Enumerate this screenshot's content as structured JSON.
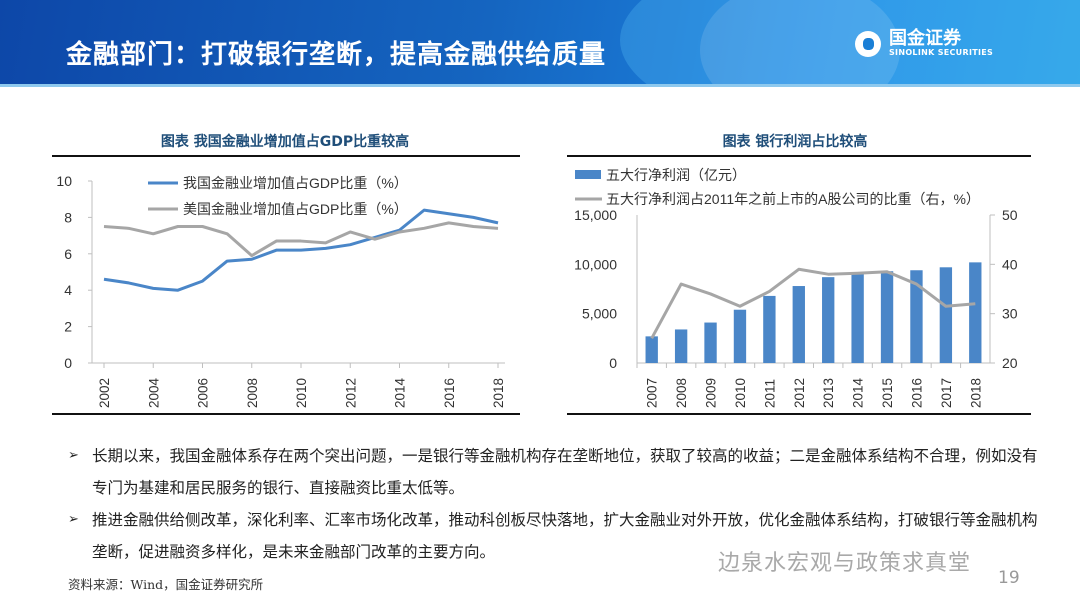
{
  "header": {
    "title": "金融部门：打破银行垄断，提高金融供给质量",
    "logo_cn": "国金证券",
    "logo_en": "SINOLINK SECURITIES"
  },
  "chart_data": [
    {
      "type": "line",
      "title": "图表  我国金融业增加值占GDP比重较高",
      "x": [
        2002,
        2003,
        2004,
        2005,
        2006,
        2007,
        2008,
        2009,
        2010,
        2011,
        2012,
        2013,
        2014,
        2015,
        2016,
        2017,
        2018
      ],
      "x_tick_labels": [
        "2002",
        "2004",
        "2006",
        "2008",
        "2010",
        "2012",
        "2014",
        "2016",
        "2018"
      ],
      "y_tick_labels": [
        "0",
        "2",
        "4",
        "6",
        "8",
        "10"
      ],
      "ylim": [
        0,
        10
      ],
      "grid": false,
      "legend_position": "top",
      "series": [
        {
          "name": "我国金融业增加值占GDP比重（%）",
          "color": "#4a86c8",
          "values": [
            4.6,
            4.4,
            4.1,
            4.0,
            4.5,
            5.6,
            5.7,
            6.2,
            6.2,
            6.3,
            6.5,
            6.9,
            7.3,
            8.4,
            8.2,
            8.0,
            7.7
          ]
        },
        {
          "name": "美国金融业增加值占GDP比重（%）",
          "color": "#a6a6a6",
          "values": [
            7.5,
            7.4,
            7.1,
            7.5,
            7.5,
            7.1,
            5.9,
            6.7,
            6.7,
            6.6,
            7.2,
            6.8,
            7.2,
            7.4,
            7.7,
            7.5,
            7.4
          ]
        }
      ]
    },
    {
      "type": "bar+line",
      "title": "图表  银行利润占比较高",
      "categories": [
        "2007",
        "2008",
        "2009",
        "2010",
        "2011",
        "2012",
        "2013",
        "2014",
        "2015",
        "2016",
        "2017",
        "2018"
      ],
      "y_left_tick_labels": [
        "0",
        "5,000",
        "10,000",
        "15,000"
      ],
      "y_right_tick_labels": [
        "20",
        "30",
        "40",
        "50"
      ],
      "ylim_left": [
        0,
        15000
      ],
      "ylim_right": [
        20,
        50
      ],
      "grid": false,
      "legend_position": "top",
      "series": [
        {
          "name": "五大行净利润（亿元）",
          "type": "bar",
          "axis": "left",
          "color": "#4a86c8",
          "values": [
            2700,
            3400,
            4100,
            5400,
            6800,
            7800,
            8700,
            9100,
            9300,
            9400,
            9700,
            10200
          ]
        },
        {
          "name": "五大行净利润占2011年之前上市的A股公司的比重（右，%）",
          "type": "line",
          "axis": "right",
          "color": "#a6a6a6",
          "values": [
            25,
            36,
            34,
            31.5,
            34.5,
            39,
            38,
            38.2,
            38.5,
            36,
            31.5,
            32
          ]
        }
      ]
    }
  ],
  "bullets": [
    "长期以来，我国金融体系存在两个突出问题，一是银行等金融机构存在垄断地位，获取了较高的收益；二是金融体系结构不合理，例如没有专门为基建和居民服务的银行、直接融资比重太低等。",
    "推进金融供给侧改革，深化利率、汇率市场化改革，推动科创板尽快落地，扩大金融业对外开放，优化金融体系结构，打破银行等金融机构垄断，促进融资多样化，是未来金融部门改革的主要方向。"
  ],
  "bullet_marker": "➢",
  "source": "资料来源：Wind，国金证券研究所",
  "page_number": "19",
  "watermark": "边泉水宏观与政策求真堂"
}
